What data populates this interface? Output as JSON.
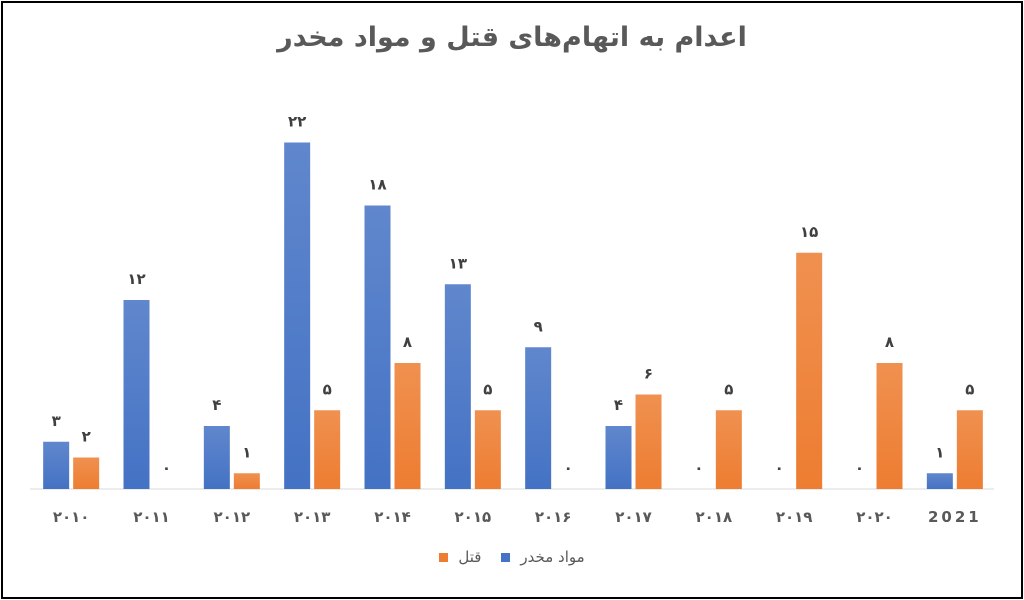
{
  "chart_data": {
    "type": "bar",
    "title": "اعدام به اتهام‌های قتل و مواد مخدر",
    "xlabel": "",
    "ylabel": "",
    "categories": [
      "۲۰۱۰",
      "۲۰۱۱",
      "۲۰۱۲",
      "۲۰۱۳",
      "۲۰۱۴",
      "۲۰۱۵",
      "۲۰۱۶",
      "۲۰۱۷",
      "۲۰۱۸",
      "۲۰۱۹",
      "۲۰۲۰",
      "2021"
    ],
    "series": [
      {
        "name": "مواد مخدر",
        "color": "#4472C4",
        "values": [
          3,
          12,
          4,
          22,
          18,
          13,
          9,
          4,
          0,
          0,
          0,
          1
        ],
        "labels": [
          "۳",
          "۱۲",
          "۴",
          "۲۲",
          "۱۸",
          "۱۳",
          "۹",
          "۴",
          "۰",
          "۰",
          "۰",
          "۱"
        ]
      },
      {
        "name": "قتل",
        "color": "#ED7D31",
        "values": [
          2,
          0,
          1,
          5,
          8,
          5,
          0,
          6,
          5,
          15,
          8,
          5
        ],
        "labels": [
          "۲",
          "۰",
          "۱",
          "۵",
          "۸",
          "۵",
          "۰",
          "۶",
          "۵",
          "۱۵",
          "۸",
          "۵"
        ]
      }
    ],
    "ylim": [
      0,
      22
    ],
    "grid": false,
    "legend_position": "bottom"
  }
}
